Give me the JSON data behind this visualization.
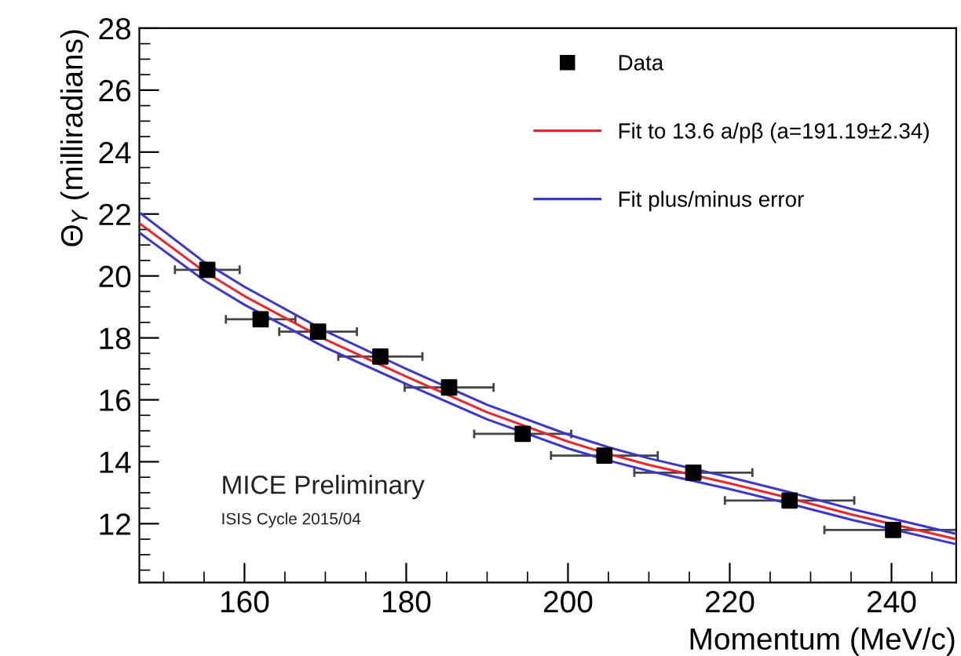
{
  "chart_data": {
    "type": "scatter",
    "xlabel": "Momentum (MeV/c)",
    "ylabel": "Θ$_{Y}$ (milliradians)",
    "xlim": [
      147,
      248
    ],
    "ylim": [
      10.1,
      28
    ],
    "xticks": [
      160,
      180,
      200,
      220,
      240
    ],
    "yticks": [
      12,
      14,
      16,
      18,
      20,
      22,
      24,
      26,
      28
    ],
    "grid": false,
    "legend": "top right",
    "series": [
      {
        "name": "Data",
        "color": "#000000",
        "marker": "square",
        "x": [
          155.4,
          162.0,
          169.1,
          176.8,
          185.3,
          194.4,
          204.5,
          215.5,
          227.4,
          240.2
        ],
        "values": [
          20.2,
          18.6,
          18.2,
          17.4,
          16.4,
          14.9,
          14.2,
          13.65,
          12.75,
          11.8
        ],
        "xerrors": [
          4,
          4.3,
          4.8,
          5.2,
          5.5,
          6,
          6.6,
          7.3,
          8,
          8.5
        ]
      },
      {
        "type": "line",
        "name": "Fit to 13.6 a/pβ (a=191.19±2.34)",
        "color": "#e8282a",
        "line_style": "solid",
        "x": [
          147,
          155,
          160,
          170,
          180,
          190,
          200,
          205,
          210,
          215,
          220,
          227,
          235,
          248
        ],
        "values": [
          21.7,
          20.15,
          19.35,
          17.95,
          16.75,
          15.6,
          14.65,
          14.25,
          13.9,
          13.6,
          13.3,
          12.85,
          12.3,
          11.5
        ]
      },
      {
        "type": "line",
        "name": "Fit plus/minus error",
        "color": "#3a3ac8",
        "line_style": "solid",
        "x": [
          147,
          155,
          160,
          170,
          180,
          190,
          200,
          205,
          210,
          215,
          220,
          227,
          235,
          248
        ],
        "values": [
          22.05,
          20.45,
          19.65,
          18.22,
          17.0,
          15.84,
          14.88,
          14.47,
          14.11,
          13.8,
          13.5,
          13.04,
          12.48,
          11.67
        ]
      },
      {
        "type": "line",
        "color": "#3a3ac8",
        "line_style": "solid",
        "x": [
          147,
          155,
          160,
          170,
          180,
          190,
          200,
          205,
          210,
          215,
          220,
          227,
          235,
          248
        ],
        "values": [
          21.4,
          19.86,
          19.07,
          17.69,
          16.51,
          15.37,
          14.43,
          14.04,
          13.7,
          13.41,
          13.12,
          12.67,
          12.13,
          11.34
        ]
      }
    ],
    "annotations": [
      "MICE Preliminary",
      "ISIS Cycle 2015/04"
    ]
  }
}
